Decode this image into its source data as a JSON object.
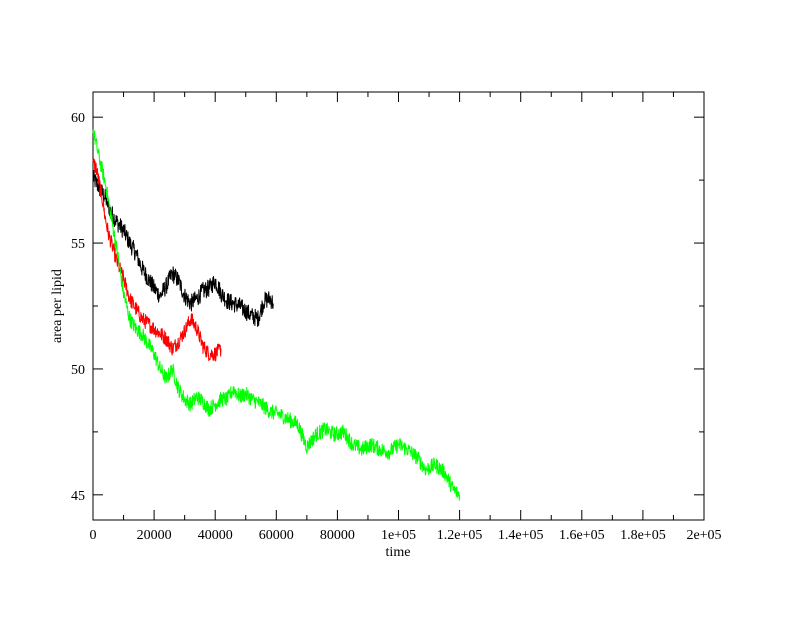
{
  "chart_data": {
    "type": "line",
    "title": "",
    "xlabel": "time",
    "ylabel": "area per lipid",
    "xlim": [
      0,
      200000
    ],
    "ylim": [
      44,
      61
    ],
    "x_ticks": [
      {
        "value": 0,
        "label": "0"
      },
      {
        "value": 20000,
        "label": "20000"
      },
      {
        "value": 40000,
        "label": "40000"
      },
      {
        "value": 60000,
        "label": "60000"
      },
      {
        "value": 80000,
        "label": "80000"
      },
      {
        "value": 100000,
        "label": "1e+05"
      },
      {
        "value": 120000,
        "label": "1.2e+05"
      },
      {
        "value": 140000,
        "label": "1.4e+05"
      },
      {
        "value": 160000,
        "label": "1.6e+05"
      },
      {
        "value": 180000,
        "label": "1.8e+05"
      },
      {
        "value": 200000,
        "label": "2e+05"
      }
    ],
    "y_ticks": [
      {
        "value": 45,
        "label": "45"
      },
      {
        "value": 50,
        "label": "50"
      },
      {
        "value": 55,
        "label": "55"
      },
      {
        "value": 60,
        "label": "60"
      }
    ],
    "grid": false,
    "legend": "none",
    "series": [
      {
        "color": "#000000",
        "noise": 0.35,
        "x": [
          0,
          2000,
          4000,
          6000,
          8000,
          10000,
          12000,
          14000,
          16000,
          18000,
          20000,
          22000,
          24000,
          26000,
          28000,
          30000,
          32000,
          34000,
          36000,
          38000,
          40000,
          42000,
          44000,
          46000,
          48000,
          50000,
          52000,
          54000,
          56000,
          58000,
          59000
        ],
        "y": [
          57.6,
          57.2,
          56.8,
          56.2,
          55.8,
          55.5,
          55.0,
          54.6,
          54.0,
          53.6,
          53.2,
          52.9,
          53.3,
          53.8,
          53.5,
          52.9,
          52.6,
          52.8,
          53.1,
          53.2,
          53.5,
          53.0,
          52.7,
          52.6,
          52.5,
          52.3,
          52.1,
          52.0,
          52.7,
          52.8,
          52.6
        ]
      },
      {
        "color": "#ff0000",
        "noise": 0.3,
        "x": [
          0,
          1000,
          2000,
          3000,
          4000,
          5000,
          6000,
          8000,
          10000,
          12000,
          14000,
          16000,
          18000,
          20000,
          22000,
          24000,
          26000,
          28000,
          30000,
          32000,
          34000,
          36000,
          38000,
          40000,
          42000
        ],
        "y": [
          58.2,
          58.0,
          57.4,
          56.8,
          56.0,
          55.4,
          55.0,
          54.2,
          53.6,
          52.8,
          52.4,
          52.0,
          51.8,
          51.6,
          51.4,
          51.2,
          50.8,
          51.1,
          51.5,
          52.0,
          51.6,
          50.9,
          50.6,
          50.6,
          50.8
        ]
      },
      {
        "color": "#00ff00",
        "noise": 0.3,
        "x": [
          0,
          2000,
          4000,
          6000,
          8000,
          10000,
          12000,
          14000,
          16000,
          18000,
          20000,
          22000,
          24000,
          26000,
          28000,
          30000,
          32000,
          34000,
          36000,
          38000,
          40000,
          42000,
          44000,
          46000,
          48000,
          50000,
          52000,
          55000,
          58000,
          61000,
          64000,
          67000,
          70000,
          73000,
          76000,
          79000,
          82000,
          85000,
          88000,
          91000,
          94000,
          97000,
          100000,
          103000,
          106000,
          109000,
          112000,
          115000,
          118000,
          120000
        ],
        "y": [
          59.5,
          58.4,
          57.4,
          56.0,
          54.6,
          53.0,
          52.0,
          51.6,
          51.4,
          51.0,
          50.6,
          50.0,
          49.6,
          50.0,
          49.2,
          48.8,
          48.6,
          48.9,
          48.7,
          48.4,
          48.6,
          48.8,
          48.8,
          49.2,
          48.9,
          49.0,
          48.8,
          48.6,
          48.3,
          48.2,
          48.0,
          47.8,
          46.9,
          47.4,
          47.6,
          47.4,
          47.5,
          47.0,
          46.8,
          47.0,
          46.8,
          46.7,
          47.0,
          46.8,
          46.5,
          46.0,
          46.2,
          45.9,
          45.2,
          45.0
        ]
      }
    ]
  }
}
